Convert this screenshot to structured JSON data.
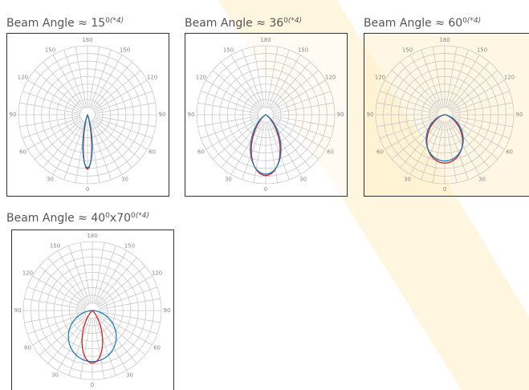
{
  "panels": [
    {
      "title": [
        "Beam Angle ≈ 15",
        "0",
        "(*4)"
      ],
      "angle_labels": [
        "0",
        "30",
        "60",
        "90",
        "120",
        "150",
        "180"
      ]
    },
    {
      "title": [
        "Beam Angle ≈ 36",
        "0",
        "(*4)"
      ],
      "angle_labels": [
        "0",
        "30",
        "60",
        "90",
        "120",
        "150",
        "180"
      ]
    },
    {
      "title": [
        "Beam Angle ≈ 60",
        "0",
        "(*4)"
      ],
      "angle_labels": [
        "0",
        "30",
        "60",
        "90",
        "120",
        "150",
        "180"
      ]
    },
    {
      "title": [
        "Beam Angle ≈ 40",
        "0",
        "x70",
        "0",
        "(*4)"
      ],
      "angle_labels": [
        "0",
        "30",
        "60",
        "90",
        "120",
        "150",
        "180"
      ]
    }
  ]
}
